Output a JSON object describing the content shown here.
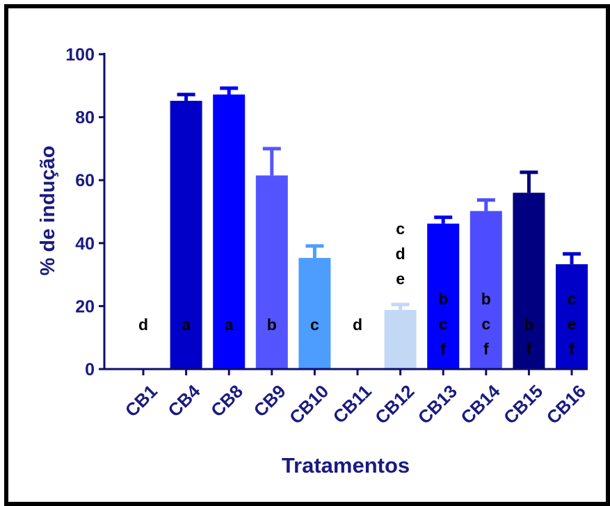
{
  "chart_data": {
    "type": "bar",
    "title": "",
    "xlabel": "Tratamentos",
    "ylabel": "% de indução",
    "ylim": [
      0,
      100
    ],
    "yticks": [
      0,
      20,
      40,
      60,
      80,
      100
    ],
    "grid": false,
    "categories": [
      "CB1",
      "CB4",
      "CB8",
      "CB9",
      "CB10",
      "CB11",
      "CB12",
      "CB13",
      "CB14",
      "CB15",
      "CB16"
    ],
    "values": [
      0,
      85.2,
      87.2,
      61.5,
      35.3,
      0,
      18.8,
      46.2,
      50.2,
      56.0,
      33.3
    ],
    "errors": [
      0,
      2.0,
      2.0,
      8.5,
      3.8,
      0,
      1.7,
      2.0,
      3.5,
      6.5,
      3.3
    ],
    "colors": [
      "#0000cc",
      "#0000c8",
      "#0000ff",
      "#5555ff",
      "#4d9dff",
      "#0000cc",
      "#c2d8f5",
      "#0000ff",
      "#4d4dff",
      "#000080",
      "#0000c8"
    ],
    "letters": [
      [
        "d"
      ],
      [
        "a"
      ],
      [
        "a"
      ],
      [
        "b"
      ],
      [
        "c"
      ],
      [
        "d"
      ],
      [
        "c",
        "d",
        "e"
      ],
      [
        "b",
        "c",
        "f"
      ],
      [
        "b",
        "c",
        "f"
      ],
      [
        "b",
        "f"
      ],
      [
        "c",
        "e",
        "f"
      ]
    ],
    "letter_color": "#000000",
    "axis_color": "#0d0d6b",
    "label_color": "#1a1a80"
  }
}
